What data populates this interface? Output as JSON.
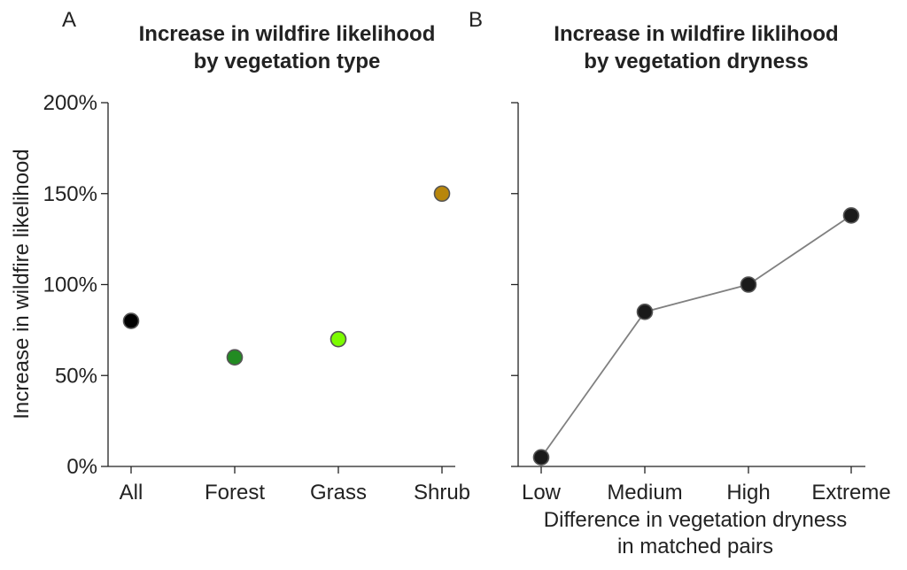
{
  "chart_data": [
    {
      "panel": "A",
      "type": "scatter",
      "title_lines": [
        "Increase in wildfire likelihood",
        "by vegetation type"
      ],
      "ylabel": "Increase in wildfire likelihood",
      "xlabel_lines": [],
      "categories": [
        "All",
        "Forest",
        "Grass",
        "Shrub"
      ],
      "values": [
        80,
        60,
        70,
        150
      ],
      "colors": [
        "#000000",
        "#228b22",
        "#7cfc00",
        "#b8860b"
      ],
      "ylim": [
        0,
        200
      ],
      "yticks": [
        0,
        50,
        100,
        150,
        200
      ],
      "ytick_labels": [
        "0%",
        "50%",
        "100%",
        "150%",
        "200%"
      ],
      "grid": false
    },
    {
      "panel": "B",
      "type": "line",
      "title_lines": [
        "Increase in wildfire liklihood",
        "by vegetation dryness"
      ],
      "xlabel_lines": [
        "Difference in vegetation dryness",
        "in matched pairs"
      ],
      "categories": [
        "Low",
        "Medium",
        "High",
        "Extreme"
      ],
      "values": [
        5,
        85,
        100,
        138
      ],
      "marker_color": "#1a1a1a",
      "line_color": "#808080",
      "ylim": [
        0,
        200
      ],
      "yticks": [
        0,
        50,
        100,
        150,
        200
      ],
      "grid": false
    }
  ]
}
